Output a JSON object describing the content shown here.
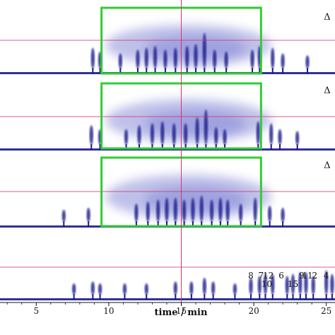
{
  "chart_data": {
    "type": "heatmap",
    "xlabel": "time / min",
    "xlim": [
      2.5,
      25.6
    ],
    "x_ticks": [
      "5",
      "10",
      "15",
      "20",
      "25"
    ],
    "x_tick_values": [
      5,
      10,
      15,
      20,
      25
    ],
    "cursor_time": 15,
    "colors": {
      "signal": "#1a1a8c",
      "signal_light": "#8a8ed8",
      "highlight_box": "#33cc33",
      "reference_line": "#d6336c",
      "axis": "#111111"
    },
    "panels": [
      {
        "marker": "Δ",
        "box_time": [
          9.5,
          20.5
        ],
        "peaks": [
          {
            "t": 8.9,
            "h": 0.55
          },
          {
            "t": 9.4,
            "h": 0.45
          },
          {
            "t": 10.8,
            "h": 0.4
          },
          {
            "t": 12.0,
            "h": 0.5
          },
          {
            "t": 12.6,
            "h": 0.55
          },
          {
            "t": 13.2,
            "h": 0.6
          },
          {
            "t": 13.9,
            "h": 0.5
          },
          {
            "t": 14.6,
            "h": 0.55
          },
          {
            "t": 15.4,
            "h": 0.6
          },
          {
            "t": 16.0,
            "h": 0.65
          },
          {
            "t": 16.6,
            "h": 0.95
          },
          {
            "t": 17.3,
            "h": 0.5
          },
          {
            "t": 18.1,
            "h": 0.45
          },
          {
            "t": 19.9,
            "h": 0.5
          },
          {
            "t": 20.4,
            "h": 0.6
          },
          {
            "t": 21.3,
            "h": 0.55
          },
          {
            "t": 22.0,
            "h": 0.4
          },
          {
            "t": 23.7,
            "h": 0.35
          }
        ]
      },
      {
        "marker": "Δ",
        "box_time": [
          9.5,
          20.5
        ],
        "peaks": [
          {
            "t": 8.8,
            "h": 0.5
          },
          {
            "t": 9.4,
            "h": 0.4
          },
          {
            "t": 11.2,
            "h": 0.4
          },
          {
            "t": 12.1,
            "h": 0.5
          },
          {
            "t": 13.0,
            "h": 0.55
          },
          {
            "t": 13.7,
            "h": 0.6
          },
          {
            "t": 14.5,
            "h": 0.55
          },
          {
            "t": 15.3,
            "h": 0.55
          },
          {
            "t": 16.1,
            "h": 0.7
          },
          {
            "t": 16.7,
            "h": 0.9
          },
          {
            "t": 17.4,
            "h": 0.45
          },
          {
            "t": 18.0,
            "h": 0.4
          },
          {
            "t": 20.3,
            "h": 0.6
          },
          {
            "t": 21.2,
            "h": 0.55
          },
          {
            "t": 21.8,
            "h": 0.4
          },
          {
            "t": 23.0,
            "h": 0.35
          }
        ]
      },
      {
        "marker": "Δ",
        "box_time": [
          9.5,
          20.5
        ],
        "peaks": [
          {
            "t": 6.9,
            "h": 0.3
          },
          {
            "t": 8.6,
            "h": 0.35
          },
          {
            "t": 11.9,
            "h": 0.45
          },
          {
            "t": 12.7,
            "h": 0.5
          },
          {
            "t": 13.4,
            "h": 0.55
          },
          {
            "t": 14.0,
            "h": 0.6
          },
          {
            "t": 14.6,
            "h": 0.6
          },
          {
            "t": 15.2,
            "h": 0.55
          },
          {
            "t": 15.8,
            "h": 0.6
          },
          {
            "t": 16.4,
            "h": 0.65
          },
          {
            "t": 17.1,
            "h": 0.55
          },
          {
            "t": 17.7,
            "h": 0.6
          },
          {
            "t": 18.2,
            "h": 0.55
          },
          {
            "t": 19.1,
            "h": 0.45
          },
          {
            "t": 20.1,
            "h": 0.6
          },
          {
            "t": 21.1,
            "h": 0.4
          },
          {
            "t": 22.0,
            "h": 0.35
          }
        ]
      },
      {
        "marker": "",
        "box_time": null,
        "peaks": [
          {
            "t": 7.6,
            "h": 0.3
          },
          {
            "t": 8.9,
            "h": 0.35
          },
          {
            "t": 9.4,
            "h": 0.3
          },
          {
            "t": 11.1,
            "h": 0.3
          },
          {
            "t": 12.6,
            "h": 0.3
          },
          {
            "t": 14.6,
            "h": 0.35
          },
          {
            "t": 15.7,
            "h": 0.35
          },
          {
            "t": 16.6,
            "h": 0.45
          },
          {
            "t": 17.2,
            "h": 0.35
          },
          {
            "t": 18.7,
            "h": 0.3
          },
          {
            "t": 19.8,
            "h": 0.45
          },
          {
            "t": 20.4,
            "h": 0.5
          },
          {
            "t": 20.8,
            "h": 0.55
          },
          {
            "t": 21.3,
            "h": 0.55
          },
          {
            "t": 22.3,
            "h": 0.5
          },
          {
            "t": 22.7,
            "h": 0.55
          },
          {
            "t": 23.2,
            "h": 0.6
          },
          {
            "t": 23.6,
            "h": 0.6
          },
          {
            "t": 24.1,
            "h": 0.5
          },
          {
            "t": 25.0,
            "h": 0.65
          },
          {
            "t": 25.4,
            "h": 0.55
          }
        ]
      }
    ],
    "peak_labels": [
      {
        "text": "8",
        "t": 19.8,
        "row": 0
      },
      {
        "text": "7",
        "t": 20.5,
        "row": 0
      },
      {
        "text": "12",
        "t": 21.0,
        "row": 0
      },
      {
        "text": "6",
        "t": 21.9,
        "row": 0
      },
      {
        "text": "10",
        "t": 20.9,
        "row": 1
      },
      {
        "text": "15",
        "t": 22.7,
        "row": 1
      },
      {
        "text": "9",
        "t": 23.3,
        "row": 0
      },
      {
        "text": "11",
        "t": 23.7,
        "row": 0
      },
      {
        "text": "2",
        "t": 24.2,
        "row": 0
      },
      {
        "text": "4",
        "t": 25.0,
        "row": 0
      }
    ]
  }
}
